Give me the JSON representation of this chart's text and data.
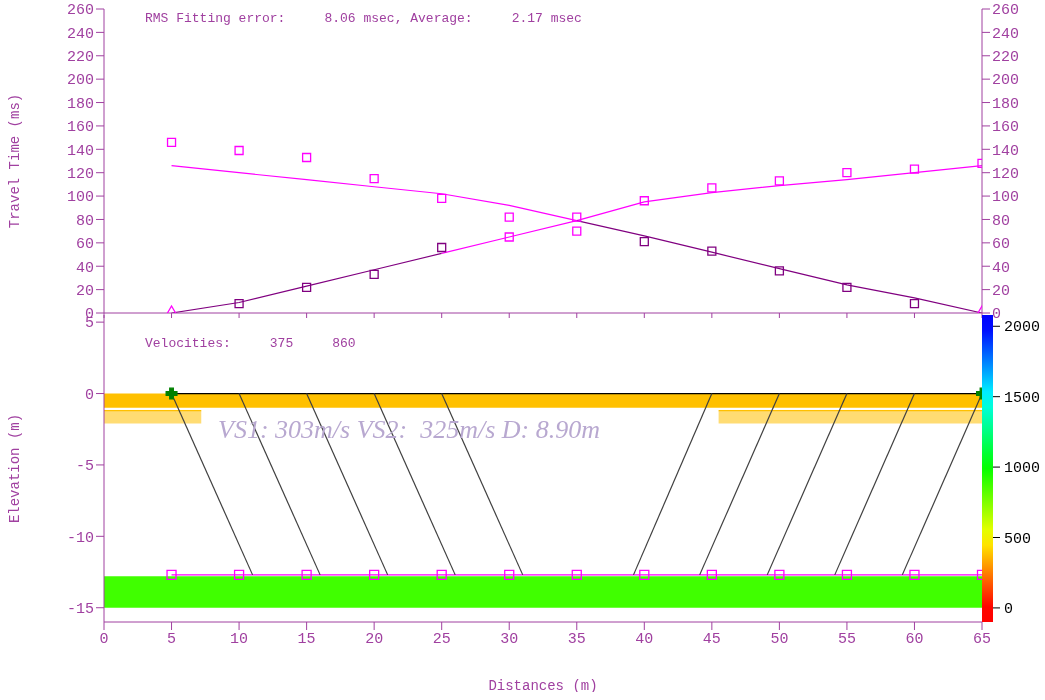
{
  "chart_data": [
    {
      "type": "line",
      "ylabel": "Travel Time (ms)",
      "annotations": [
        "RMS Fitting error:     8.06 msec, Average:     2.17 msec"
      ],
      "xlim": [
        0,
        65
      ],
      "xticks": [
        0,
        5,
        10,
        15,
        20,
        25,
        30,
        35,
        40,
        45,
        50,
        55,
        60,
        65
      ],
      "ylim": [
        0,
        260
      ],
      "yticks": [
        0,
        20,
        40,
        60,
        80,
        100,
        120,
        140,
        160,
        180,
        200,
        220,
        240,
        260
      ],
      "y2lim": [
        0,
        260
      ],
      "y2ticks": [
        0,
        20,
        40,
        60,
        80,
        100,
        120,
        140,
        160,
        180,
        200,
        220,
        240,
        260
      ],
      "tick_labels": "y",
      "series": [
        {
          "color": "#800080",
          "x": [
            5,
            10,
            15,
            20,
            25
          ],
          "values": [
            0,
            9,
            23,
            37,
            51
          ]
        },
        {
          "color": "#ff00ff",
          "x": [
            25,
            30,
            35,
            40,
            45,
            50,
            55,
            60,
            65
          ],
          "values": [
            51,
            65,
            79,
            95,
            103,
            109,
            114,
            120,
            126
          ]
        },
        {
          "color": "#ff00ff",
          "x": [
            5,
            10,
            15,
            20,
            25,
            30,
            35
          ],
          "values": [
            126,
            120,
            114,
            108,
            102,
            92,
            79
          ]
        },
        {
          "color": "#800080",
          "x": [
            35,
            40,
            45,
            50,
            55,
            60,
            65
          ],
          "values": [
            79,
            66,
            52,
            38,
            24,
            13,
            0
          ]
        },
        {
          "type": "scatter",
          "marker": "square",
          "colors": [
            "#800080",
            "#800080",
            "#800080",
            "#800080",
            "#ff00ff",
            "#ff00ff",
            "#ff00ff",
            "#ff00ff",
            "#ff00ff",
            "#ff00ff",
            "#ff00ff",
            "#ff00ff"
          ],
          "x": [
            10,
            15,
            20,
            25,
            30,
            35,
            40,
            45,
            50,
            55,
            60,
            65
          ],
          "values": [
            8,
            22,
            33,
            56,
            65,
            70,
            96,
            107,
            113,
            120,
            123,
            128
          ]
        },
        {
          "type": "scatter",
          "marker": "square",
          "colors": [
            "#ff00ff",
            "#ff00ff",
            "#ff00ff",
            "#ff00ff",
            "#ff00ff",
            "#ff00ff",
            "#ff00ff",
            "#800080",
            "#800080",
            "#800080",
            "#800080",
            "#800080"
          ],
          "x": [
            5,
            10,
            15,
            20,
            25,
            30,
            35,
            40,
            45,
            50,
            55,
            60
          ],
          "values": [
            146,
            139,
            133,
            115,
            98,
            82,
            82,
            61,
            53,
            36,
            22,
            8
          ]
        },
        {
          "type": "scatter",
          "marker": "triangle",
          "color": "#ff00ff",
          "x": [
            5,
            65
          ],
          "values": [
            0,
            0
          ]
        }
      ]
    },
    {
      "type": "line",
      "xlabel": "Distances (m)",
      "ylabel": "Elevation (m)",
      "annotations": [
        "Velocities:     375     860",
        "VS1: 303m/s VS2:  325m/s D: 8.90m"
      ],
      "xlim": [
        0,
        65
      ],
      "xticks": [
        0,
        5,
        10,
        15,
        20,
        25,
        30,
        35,
        40,
        45,
        50,
        55,
        60,
        65
      ],
      "ylim": [
        -16,
        5.5
      ],
      "yticks": [
        -15,
        -10,
        -5,
        0,
        5
      ],
      "clim": [
        -100,
        2080
      ],
      "cticks": [
        0,
        500,
        1000,
        1500,
        2000
      ],
      "bands": [
        {
          "axis": "y",
          "from": -1,
          "to": 0,
          "color": "#ffc000"
        },
        {
          "axis": "y",
          "from": -15,
          "to": -12.8,
          "color": "#40ff00"
        }
      ],
      "series": [
        {
          "color": "#ffc000",
          "x": [
            0,
            7.2
          ],
          "values": [
            -1.2,
            -1.2
          ],
          "lower": [
            -2.1,
            -2.1
          ],
          "upper": [
            -1.2,
            -1.2
          ]
        },
        {
          "color": "#ffc000",
          "x": [
            45.5,
            65
          ],
          "values": [
            -1.2,
            -1.2
          ],
          "lower": [
            -2.1,
            -2.1
          ],
          "upper": [
            -1.2,
            -1.2
          ]
        },
        {
          "color": "#000000",
          "x": [
            5,
            65
          ],
          "values": [
            0,
            0
          ]
        },
        {
          "color": "#ff00ff",
          "marker": "square",
          "x": [
            5,
            10,
            15,
            20,
            25,
            30,
            35,
            40,
            45,
            50,
            55,
            60,
            65
          ],
          "values": [
            -12.7,
            -12.7,
            -12.7,
            -12.7,
            -12.7,
            -12.7,
            -12.7,
            -12.7,
            -12.7,
            -12.7,
            -12.7,
            -12.7,
            -12.7
          ]
        },
        {
          "color": "#404040",
          "x": [
            5,
            11
          ],
          "values": [
            0,
            -12.7
          ]
        },
        {
          "color": "#404040",
          "x": [
            10,
            16
          ],
          "values": [
            0,
            -12.7
          ]
        },
        {
          "color": "#404040",
          "x": [
            15,
            21
          ],
          "values": [
            0,
            -12.7
          ]
        },
        {
          "color": "#404040",
          "x": [
            20,
            26
          ],
          "values": [
            0,
            -12.7
          ]
        },
        {
          "color": "#404040",
          "x": [
            25,
            31
          ],
          "values": [
            0,
            -12.7
          ]
        },
        {
          "color": "#404040",
          "x": [
            45,
            39.2
          ],
          "values": [
            0,
            -12.7
          ]
        },
        {
          "color": "#404040",
          "x": [
            50,
            44.1
          ],
          "values": [
            0,
            -12.7
          ]
        },
        {
          "color": "#404040",
          "x": [
            55,
            49.1
          ],
          "values": [
            0,
            -12.7
          ]
        },
        {
          "color": "#404040",
          "x": [
            60,
            54.1
          ],
          "values": [
            0,
            -12.7
          ]
        },
        {
          "color": "#404040",
          "x": [
            65,
            59.1
          ],
          "values": [
            0,
            -12.7
          ]
        },
        {
          "type": "scatter",
          "marker": "cross",
          "color": "#008000",
          "x": [
            5,
            65
          ],
          "values": [
            0,
            0
          ]
        }
      ]
    }
  ]
}
